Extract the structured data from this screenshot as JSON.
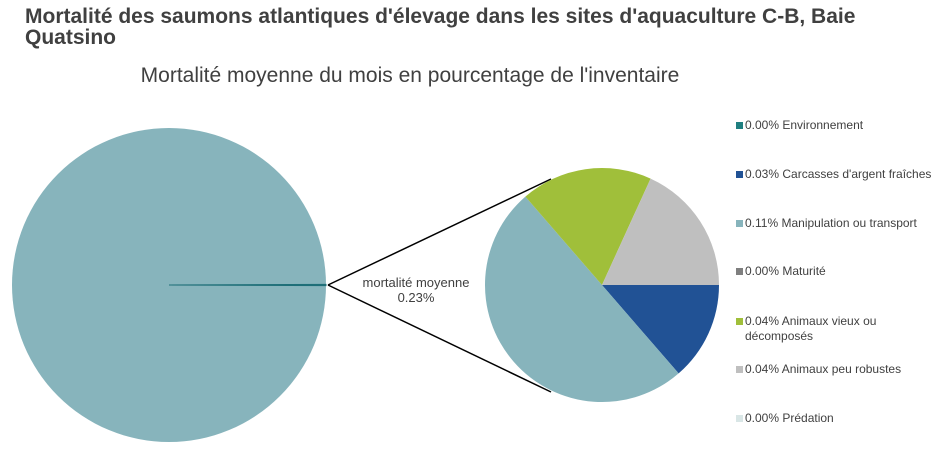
{
  "title": "Mortalité des saumons atlantiques d'élevage dans les sites d'aquaculture C-B, Baie Quatsino",
  "chart_data": {
    "type": "pie",
    "subtitle": "Mortalité moyenne du mois en pourcentage de l'inventaire",
    "main_pie": {
      "label": "mortalité moyenne",
      "value_label": "0.23%",
      "value": 0.23,
      "color": "#87B4BC",
      "slice_color": "#1F6F78"
    },
    "legend_placement": "right",
    "series": [
      {
        "label": "0.00% Environnement",
        "value": 0.0,
        "color": "#1F7F80"
      },
      {
        "label": "0.03% Carcasses d'argent fraîches",
        "value": 0.03,
        "color": "#215295"
      },
      {
        "label": "0.11% Manipulation ou transport",
        "value": 0.11,
        "color": "#87B4BC"
      },
      {
        "label": "0.00% Maturité",
        "value": 0.0,
        "color": "#7F7F7F"
      },
      {
        "label": "0.04% Animaux vieux ou décomposés",
        "value": 0.04,
        "color": "#A0BF3A"
      },
      {
        "label": "0.04% Animaux peu robustes",
        "value": 0.04,
        "color": "#BFBFBF"
      },
      {
        "label": "0.00% Prédation",
        "value": 0.0,
        "color": "#D9E6E6"
      }
    ]
  }
}
